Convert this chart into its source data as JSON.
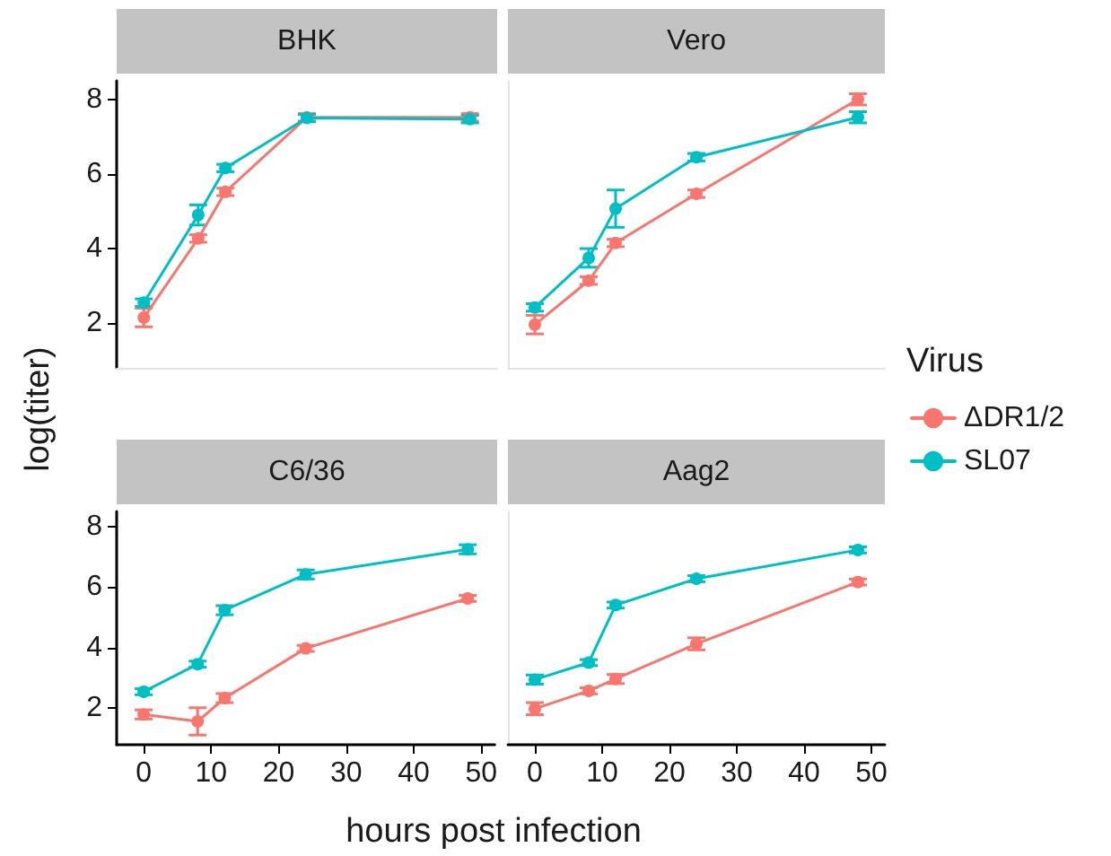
{
  "chart_data": [
    {
      "type": "line",
      "title": "BHK",
      "ylabel": "log(titer)",
      "x": [
        0,
        8,
        12,
        24,
        48
      ],
      "xlim": [
        -4,
        52
      ],
      "xticks": [
        0,
        10,
        20,
        30,
        40,
        50
      ],
      "ylim": [
        0.8,
        8.5
      ],
      "yticks": [
        2,
        4,
        6,
        8
      ],
      "tick_labels": "y",
      "grid": false,
      "marker": "circle",
      "line_style": "solid",
      "series": [
        {
          "color": "#f8766d",
          "values": [
            2.15,
            4.27,
            5.52,
            7.52,
            7.52
          ],
          "errors": [
            0.25,
            0.1,
            0.1,
            0.1,
            0.1
          ]
        },
        {
          "color": "#00bfc4",
          "values": [
            2.55,
            4.9,
            6.16,
            7.5,
            7.47
          ],
          "errors": [
            0.1,
            0.27,
            0.1,
            0.1,
            0.1
          ]
        }
      ]
    },
    {
      "type": "line",
      "title": "Vero",
      "legend_title": "Virus",
      "legend": "right",
      "x": [
        0,
        8,
        12,
        24,
        48
      ],
      "xlim": [
        -4,
        52
      ],
      "xticks": [
        0,
        10,
        20,
        30,
        40,
        50
      ],
      "ylim": [
        0.8,
        8.5
      ],
      "yticks": [
        2,
        4,
        6,
        8
      ],
      "tick_labels": false,
      "grid": false,
      "marker": "circle",
      "line_style": "solid",
      "series": [
        {
          "name": "ΔDR1/2",
          "color": "#f8766d",
          "values": [
            1.96,
            3.14,
            4.15,
            5.47,
            8.0
          ],
          "errors": [
            0.25,
            0.1,
            0.1,
            0.1,
            0.15
          ]
        },
        {
          "name": "SL07",
          "color": "#00bfc4",
          "values": [
            2.42,
            3.75,
            5.07,
            6.45,
            7.52
          ],
          "errors": [
            0.1,
            0.25,
            0.5,
            0.1,
            0.15
          ]
        }
      ]
    },
    {
      "type": "line",
      "title": "C6/36",
      "xlabel": "hours post infection",
      "x": [
        0,
        8,
        12,
        24,
        48
      ],
      "xlim": [
        -4,
        52
      ],
      "xticks": [
        0,
        10,
        20,
        30,
        40,
        50
      ],
      "ylim": [
        0.8,
        8.5
      ],
      "yticks": [
        2,
        4,
        6,
        8
      ],
      "grid": false,
      "marker": "circle",
      "line_style": "solid",
      "series": [
        {
          "color": "#f8766d",
          "values": [
            1.8,
            1.57,
            2.34,
            3.98,
            5.63
          ],
          "errors": [
            0.15,
            0.45,
            0.15,
            0.1,
            0.1
          ]
        },
        {
          "color": "#00bfc4",
          "values": [
            2.55,
            3.46,
            5.24,
            6.42,
            7.25
          ],
          "errors": [
            0.1,
            0.1,
            0.15,
            0.15,
            0.15
          ]
        }
      ]
    },
    {
      "type": "line",
      "title": "Aag2",
      "x": [
        0,
        8,
        12,
        24,
        48
      ],
      "xlim": [
        -4,
        52
      ],
      "xticks": [
        0,
        10,
        20,
        30,
        40,
        50
      ],
      "ylim": [
        0.8,
        8.5
      ],
      "yticks": [
        2,
        4,
        6,
        8
      ],
      "tick_labels": "x",
      "grid": false,
      "marker": "circle",
      "line_style": "solid",
      "series": [
        {
          "color": "#f8766d",
          "values": [
            1.99,
            2.58,
            2.97,
            4.13,
            6.17
          ],
          "errors": [
            0.2,
            0.1,
            0.15,
            0.2,
            0.1
          ]
        },
        {
          "color": "#00bfc4",
          "values": [
            2.95,
            3.51,
            5.41,
            6.28,
            7.23
          ],
          "errors": [
            0.15,
            0.1,
            0.1,
            0.1,
            0.1
          ]
        }
      ]
    }
  ]
}
